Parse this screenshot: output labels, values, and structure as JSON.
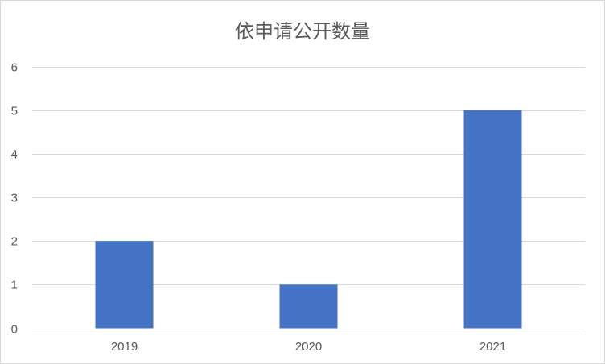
{
  "chart_data": {
    "type": "bar",
    "title": "依申请公开数量",
    "categories": [
      "2019",
      "2020",
      "2021"
    ],
    "values": [
      2,
      1,
      5
    ],
    "xlabel": "",
    "ylabel": "",
    "ylim": [
      0,
      6
    ],
    "yticks": [
      0,
      1,
      2,
      3,
      4,
      5,
      6
    ],
    "grid": true,
    "legend": "none",
    "bar_color": "#4472C4"
  }
}
